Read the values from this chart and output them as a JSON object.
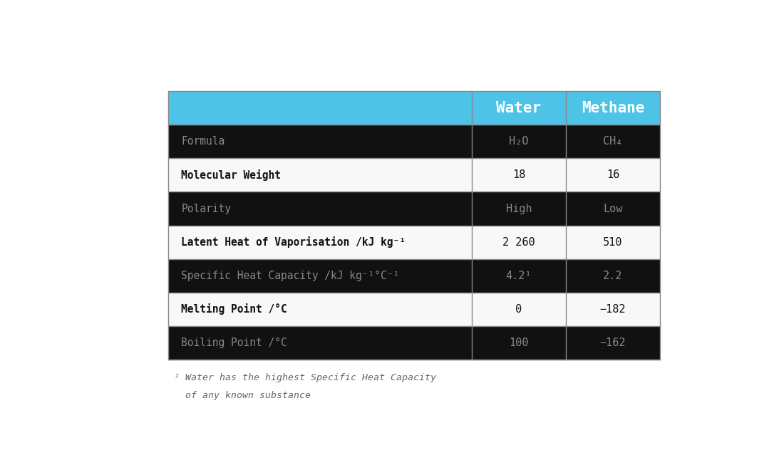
{
  "header_bg": "#4DC3E8",
  "header_text_color": "#FFFFFF",
  "col_header": [
    "Water",
    "Methane"
  ],
  "rows": [
    {
      "property": "Formula",
      "water": "H₂O",
      "methane": "CH₄",
      "dark": true
    },
    {
      "property": "Molecular Weight",
      "water": "18",
      "methane": "16",
      "dark": false
    },
    {
      "property": "Polarity",
      "water": "High",
      "methane": "Low",
      "dark": true
    },
    {
      "property": "Latent Heat of Vaporisation /kJ kg⁻¹",
      "water": "2 260",
      "methane": "510",
      "dark": false
    },
    {
      "property": "Specific Heat Capacity /kJ kg⁻¹°C⁻¹",
      "water": "4.2¹",
      "methane": "2.2",
      "dark": true
    },
    {
      "property": "Melting Point /°C",
      "water": "0",
      "methane": "−182",
      "dark": false
    },
    {
      "property": "Boiling Point /°C",
      "water": "100",
      "methane": "−162",
      "dark": true
    }
  ],
  "footnote_line1": "¹ Water has the highest Specific Heat Capacity",
  "footnote_line2": "  of any known substance",
  "dark_row_bg": "#111111",
  "light_row_bg": "#f8f8f8",
  "dark_row_text": "#888888",
  "light_row_text": "#111111",
  "border_color": "#888888",
  "arrow_color": "#35BBEA",
  "tl": 0.115,
  "tr": 0.925,
  "tt": 0.895,
  "tb": 0.13,
  "c1r": 0.615,
  "c2r": 0.77
}
